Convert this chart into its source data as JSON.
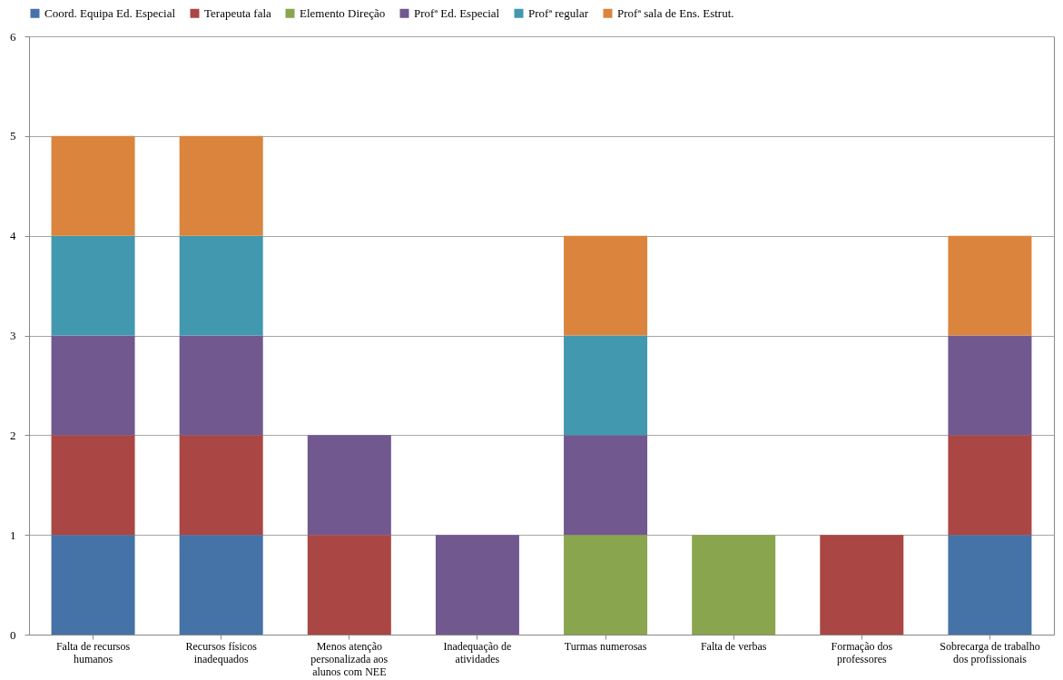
{
  "chart_data": {
    "type": "bar",
    "stacked": true,
    "categories": [
      "Falta de recursos humanos",
      "Recursos físicos inadequados",
      "Menos atenção personalizada aos alunos com NEE",
      "Inadequação de atividades",
      "Turmas numerosas",
      "Falta de verbas",
      "Formação dos professores",
      "Sobrecarga de trabalho dos profissionais"
    ],
    "series": [
      {
        "name": "Coord. Equipa Ed. Especial",
        "color": "#4572a7",
        "values": [
          1,
          1,
          0,
          0,
          0,
          0,
          0,
          1
        ]
      },
      {
        "name": "Terapeuta fala",
        "color": "#aa4643",
        "values": [
          1,
          1,
          1,
          0,
          0,
          0,
          1,
          1
        ]
      },
      {
        "name": "Elemento Direção",
        "color": "#89a54e",
        "values": [
          0,
          0,
          0,
          0,
          1,
          1,
          0,
          0
        ]
      },
      {
        "name": "Profª Ed. Especial",
        "color": "#71588f",
        "values": [
          1,
          1,
          1,
          1,
          1,
          0,
          0,
          1
        ]
      },
      {
        "name": "Profª regular",
        "color": "#4198af",
        "values": [
          1,
          1,
          0,
          0,
          1,
          0,
          0,
          0
        ]
      },
      {
        "name": "Profª sala de Ens. Estrut.",
        "color": "#db843d",
        "values": [
          1,
          1,
          0,
          0,
          1,
          0,
          0,
          1
        ]
      }
    ],
    "ylim": [
      0,
      6
    ],
    "yticks": [
      0,
      1,
      2,
      3,
      4,
      5,
      6
    ],
    "grid": "y",
    "legend": "top"
  }
}
